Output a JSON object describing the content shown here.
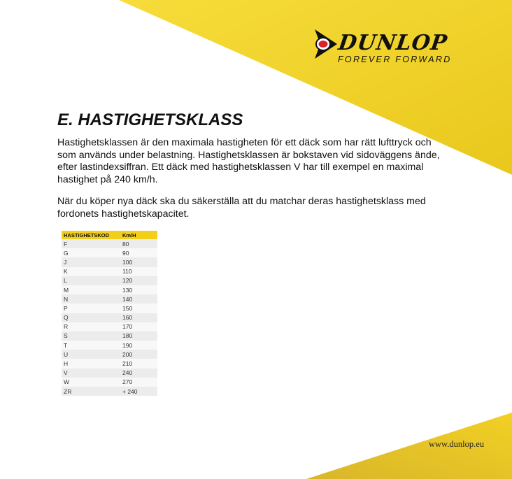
{
  "brand": {
    "name": "DUNLOP",
    "tagline": "FOREVER FORWARD",
    "color": "#f4cf1a"
  },
  "heading": "E. HASTIGHETSKLASS",
  "paragraphs": [
    "Hastighetsklassen är den maximala hastigheten för ett däck som har rätt lufttryck och som används under belastning. Hastighetsklassen är bokstaven vid sidoväggens ände, efter lastindexsiffran. Ett däck med hastighetsklassen V har till exempel en maximal hastighet på 240 km/h.",
    "När du köper nya däck ska du säkerställa att du matchar deras hastighetsklass med fordonets hastighetskapacitet."
  ],
  "table": {
    "headers": [
      "HASTIGHETSKOD",
      "Km/H"
    ],
    "rows": [
      [
        "F",
        "80"
      ],
      [
        "G",
        "90"
      ],
      [
        "J",
        "100"
      ],
      [
        "K",
        "110"
      ],
      [
        "L",
        "120"
      ],
      [
        "M",
        "130"
      ],
      [
        "N",
        "140"
      ],
      [
        "P",
        "150"
      ],
      [
        "Q",
        "160"
      ],
      [
        "R",
        "170"
      ],
      [
        "S",
        "180"
      ],
      [
        "T",
        "190"
      ],
      [
        "U",
        "200"
      ],
      [
        "H",
        "210"
      ],
      [
        "V",
        "240"
      ],
      [
        "W",
        "270"
      ],
      [
        "ZR",
        "+ 240"
      ]
    ]
  },
  "footer": {
    "url": "www.dunlop.eu"
  }
}
